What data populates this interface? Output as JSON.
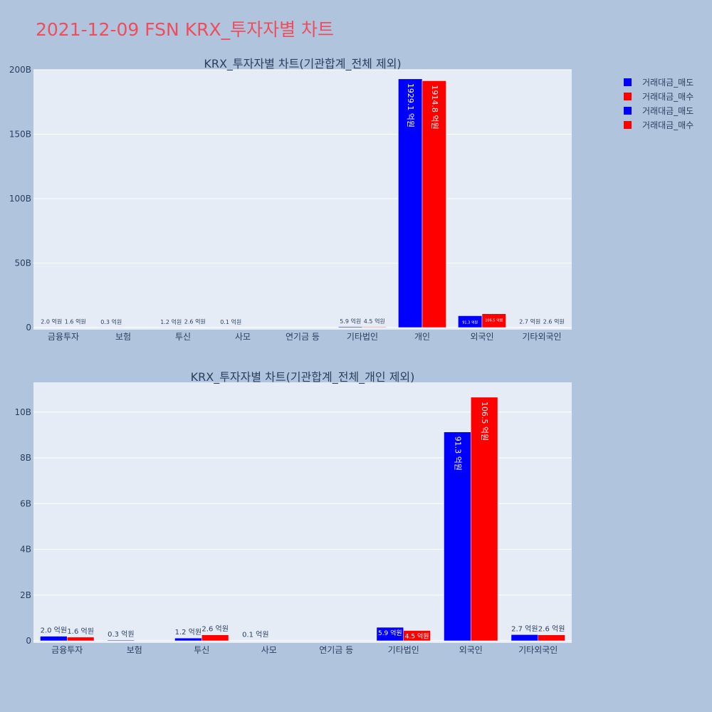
{
  "title": "2021-12-09 FSN KRX_투자자별 차트",
  "colors": {
    "sell": "#0000ff",
    "buy": "#ff0000",
    "title": "#ef4d5c",
    "plot_bg": "#e5ecf6",
    "page_bg": "#b0c4de",
    "axis_text": "#2a3f5f"
  },
  "legend": [
    {
      "label": "거래대금_매도",
      "color": "#0000ff"
    },
    {
      "label": "거래대금_매수",
      "color": "#ff0000"
    },
    {
      "label": "거래대금_매도",
      "color": "#0000ff"
    },
    {
      "label": "거래대금_매수",
      "color": "#ff0000"
    }
  ],
  "chart_data": [
    {
      "type": "bar",
      "title": "KRX_투자자별 차트(기관합계_전체 제외)",
      "categories": [
        "금융투자",
        "보험",
        "투신",
        "사모",
        "연기금 등",
        "기타법인",
        "개인",
        "외국인",
        "기타외국인"
      ],
      "series": [
        {
          "name": "거래대금_매도",
          "values": [
            0.2,
            0.03,
            0.12,
            0.01,
            0,
            0.59,
            192.91,
            9.13,
            0.27
          ],
          "labels": [
            "2.0 억원",
            "0.3 억원",
            "1.2 억원",
            "0.1 억원",
            "",
            "5.9 억원",
            "1929.1 억원",
            "91.3 억원",
            "2.7 억원"
          ]
        },
        {
          "name": "거래대금_매수",
          "values": [
            0.16,
            0,
            0.26,
            0,
            0,
            0.45,
            191.48,
            10.65,
            0.26
          ],
          "labels": [
            "1.6 억원",
            "",
            "2.6 억원",
            "",
            "",
            "4.5 억원",
            "1914.8 억원",
            "106.5 억원",
            "2.6 억원"
          ]
        }
      ],
      "yticks": [
        "0",
        "50B",
        "100B",
        "150B",
        "200B"
      ],
      "ylim": [
        0,
        200
      ],
      "ytick_values": [
        0,
        50,
        100,
        150,
        200
      ]
    },
    {
      "type": "bar",
      "title": "KRX_투자자별 차트(기관합계_전체_개인 제외)",
      "categories": [
        "금융투자",
        "보험",
        "투신",
        "사모",
        "연기금 등",
        "기타법인",
        "외국인",
        "기타외국인"
      ],
      "series": [
        {
          "name": "거래대금_매도",
          "values": [
            0.2,
            0.03,
            0.12,
            0.01,
            0,
            0.59,
            9.13,
            0.27
          ],
          "labels": [
            "2.0 억원",
            "0.3 억원",
            "1.2 억원",
            "0.1 억원",
            "",
            "5.9 억원",
            "91.3 억원",
            "2.7 억원"
          ]
        },
        {
          "name": "거래대금_매수",
          "values": [
            0.16,
            0,
            0.26,
            0,
            0,
            0.45,
            10.65,
            0.26
          ],
          "labels": [
            "1.6 억원",
            "",
            "2.6 억원",
            "",
            "",
            "4.5 억원",
            "106.5 억원",
            "2.6 억원"
          ]
        }
      ],
      "yticks": [
        "0",
        "2B",
        "4B",
        "6B",
        "8B",
        "10B"
      ],
      "ylim": [
        0,
        11.3
      ],
      "ytick_values": [
        0,
        2,
        4,
        6,
        8,
        10
      ]
    }
  ]
}
